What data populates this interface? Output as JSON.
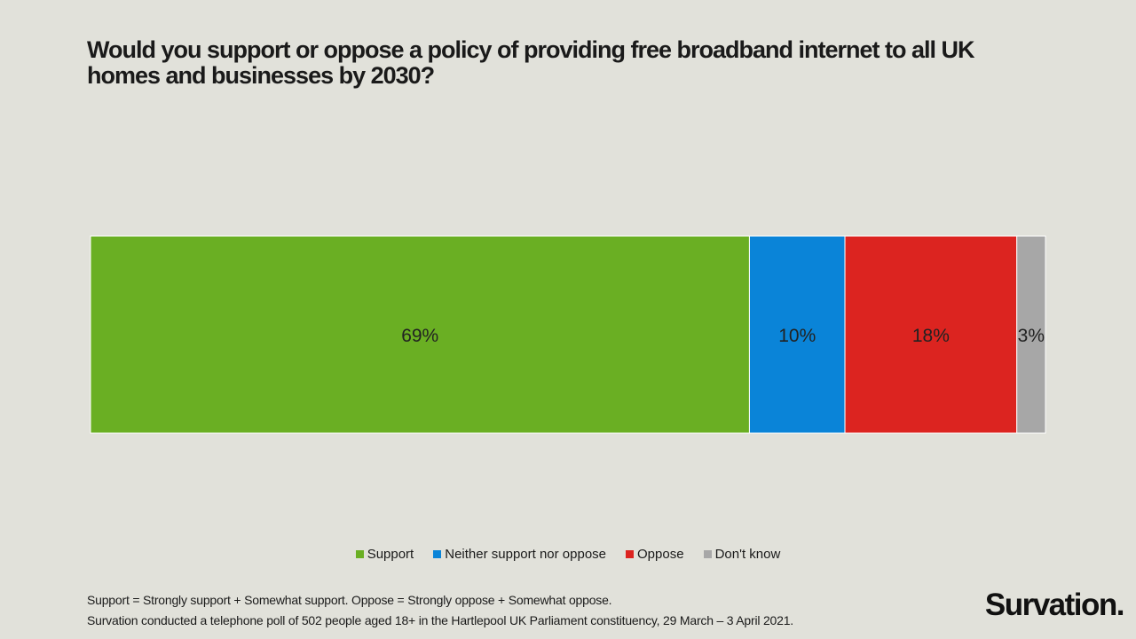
{
  "chart_data": {
    "type": "bar",
    "orientation": "horizontal-stacked",
    "title": "Would you support or oppose a policy of providing free broadband internet to all UK homes and businesses by 2030?",
    "xlabel": "",
    "ylabel": "",
    "categories": [
      ""
    ],
    "series": [
      {
        "name": "Support",
        "values": [
          69
        ],
        "label": "69%",
        "color": "#6aaf23"
      },
      {
        "name": "Neither support nor oppose",
        "values": [
          10
        ],
        "label": "10%",
        "color": "#0a84d8"
      },
      {
        "name": "Oppose",
        "values": [
          18
        ],
        "label": "18%",
        "color": "#dc2420"
      },
      {
        "name": "Don't know",
        "values": [
          3
        ],
        "label": "3%",
        "color": "#a7a7a7"
      }
    ],
    "xlim": [
      0,
      100
    ],
    "grid": false,
    "legend_position": "bottom"
  },
  "footnotes": [
    "Support = Strongly support + Somewhat support. Oppose = Strongly oppose + Somewhat oppose.",
    "Survation conducted a telephone poll of 502 people aged 18+ in the Hartlepool UK Parliament constituency, 29 March – 3 April 2021."
  ],
  "brand": {
    "logo_text": "Survation."
  }
}
